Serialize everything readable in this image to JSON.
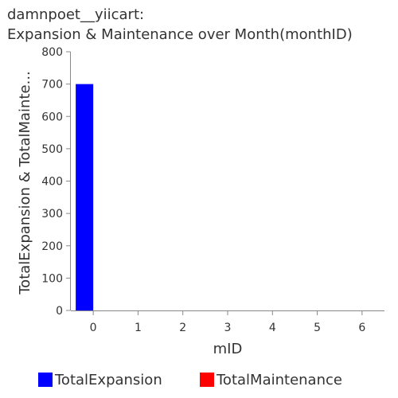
{
  "chart_data": {
    "type": "bar",
    "title": "damnpoet__yiicart:",
    "subtitle": "Expansion & Maintenance over Month(monthID)",
    "xlabel": "mID",
    "ylabel": "TotalExpansion & TotalMainte...",
    "categories": [
      "0",
      "1",
      "2",
      "3",
      "4",
      "5",
      "6"
    ],
    "ylim": [
      0,
      800
    ],
    "yticks": [
      "0",
      "100",
      "200",
      "300",
      "400",
      "500",
      "600",
      "700",
      "800"
    ],
    "grid": false,
    "legend_placement": "bottom",
    "series": [
      {
        "name": "TotalExpansion",
        "color": "#0000ff",
        "values": [
          700,
          0,
          0,
          0,
          0,
          0,
          0
        ]
      },
      {
        "name": "TotalMaintenance",
        "color": "#ff0000",
        "values": [
          0,
          0,
          0,
          0,
          0,
          0,
          0
        ]
      }
    ]
  }
}
